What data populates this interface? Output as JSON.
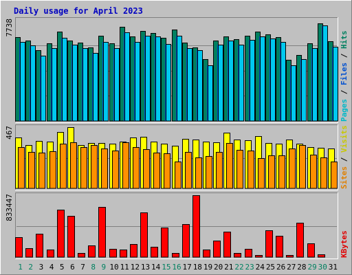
{
  "chart_data": {
    "type": "bar",
    "title": "Daily usage for April 2023",
    "x": [
      "1",
      "2",
      "3",
      "4",
      "5",
      "6",
      "7",
      "8",
      "9",
      "10",
      "11",
      "12",
      "13",
      "14",
      "15",
      "16",
      "17",
      "18",
      "19",
      "20",
      "21",
      "22",
      "23",
      "24",
      "25",
      "26",
      "27",
      "28",
      "29",
      "30",
      "31"
    ],
    "weekend_days": [
      "1",
      "2",
      "8",
      "9",
      "15",
      "16",
      "22",
      "23",
      "29",
      "30"
    ],
    "panels": [
      {
        "id": "hits-files-pages",
        "scale_max_label": "7738",
        "ylim": [
          0,
          7738
        ],
        "right_label": [
          "Pages",
          "Files",
          "Hits"
        ],
        "right_label_colors": [
          "#00b8c8",
          "#0050d0",
          "#008060"
        ],
        "series": [
          {
            "name": "Hits",
            "color": "#008060",
            "values": [
              6400,
              6150,
              5400,
              5950,
              6850,
              6150,
              6000,
              5650,
              6550,
              5950,
              7200,
              6500,
              6900,
              6750,
              6350,
              7000,
              6000,
              5650,
              4750,
              6150,
              6450,
              6250,
              6550,
              6850,
              6650,
              6400,
              4700,
              5050,
              5950,
              7500,
              6100
            ]
          },
          {
            "name": "Files",
            "color": "#0050d0",
            "values": [
              6050,
              5800,
              5000,
              5600,
              6350,
              5850,
              5600,
              5200,
              6050,
              5600,
              6800,
              6050,
              6550,
              6450,
              5900,
              6550,
              5600,
              5400,
              4250,
              5850,
              6150,
              5850,
              6200,
              6450,
              6300,
              6050,
              4250,
              4750,
              5600,
              7300,
              5700
            ]
          },
          {
            "name": "Pages",
            "color": "#00c8f0",
            "values": [
              6050,
              5800,
              5000,
              5600,
              6350,
              5850,
              5600,
              5200,
              6050,
              5600,
              6800,
              6050,
              6550,
              6450,
              5900,
              6550,
              5600,
              5400,
              4250,
              5850,
              6150,
              5850,
              6200,
              6450,
              6300,
              6050,
              4250,
              4750,
              5600,
              7300,
              5700
            ]
          }
        ]
      },
      {
        "id": "visits-sites",
        "scale_max_label": "467",
        "ylim": [
          0,
          467
        ],
        "right_label": [
          "Sites",
          "Visits"
        ],
        "right_label_colors": [
          "#e08000",
          "#c8c800"
        ],
        "series": [
          {
            "name": "Visits",
            "color": "#ffff00",
            "values": [
              390,
              330,
              360,
              355,
              430,
              465,
              330,
              345,
              345,
              340,
              355,
              390,
              395,
              355,
              340,
              325,
              380,
              370,
              355,
              350,
              425,
              375,
              365,
              400,
              345,
              340,
              370,
              340,
              315,
              310,
              305
            ]
          },
          {
            "name": "Sites",
            "color": "#ff9000",
            "values": [
              315,
              280,
              275,
              285,
              340,
              350,
              315,
              330,
              305,
              290,
              350,
              315,
              300,
              275,
              270,
              205,
              280,
              235,
              245,
              280,
              345,
              295,
              290,
              230,
              250,
              250,
              305,
              330,
              255,
              235,
              205
            ]
          }
        ]
      },
      {
        "id": "kbytes",
        "scale_max_label": "833447",
        "ylim": [
          0,
          833447
        ],
        "right_label": [
          "KBytes"
        ],
        "right_label_colors": [
          "#e00000"
        ],
        "series": [
          {
            "name": "KBytes",
            "color": "#ff0000",
            "values": [
              270000,
              120000,
              315000,
              100000,
              635000,
              555000,
              60000,
              160000,
              675000,
              110000,
              105000,
              180000,
              605000,
              140000,
              395000,
              55000,
              445000,
              833447,
              100000,
              225000,
              340000,
              60000,
              110000,
              30000,
              365000,
              285000,
              25000,
              460000,
              185000,
              35000,
              0
            ]
          }
        ]
      }
    ]
  }
}
